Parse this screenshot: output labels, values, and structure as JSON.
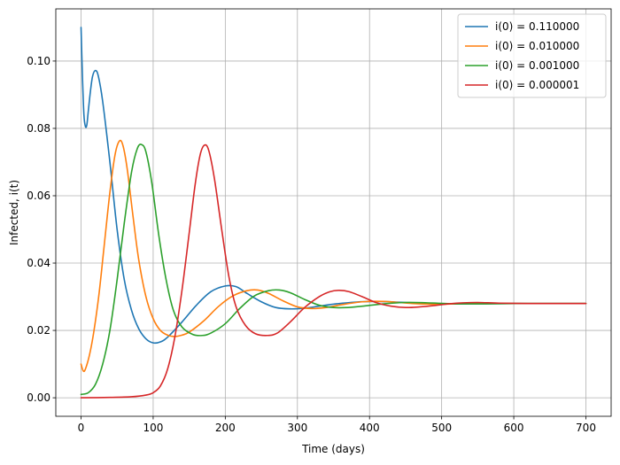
{
  "chart_data": {
    "type": "line",
    "title": "",
    "xlabel": "Time (days)",
    "ylabel": "Infected, i(t)",
    "xlim": [
      -35,
      735
    ],
    "ylim": [
      -0.0055,
      0.1155
    ],
    "xticks": [
      0,
      100,
      200,
      300,
      400,
      500,
      600,
      700
    ],
    "xtick_labels": [
      "0",
      "100",
      "200",
      "300",
      "400",
      "500",
      "600",
      "700"
    ],
    "yticks": [
      0.0,
      0.02,
      0.04,
      0.06,
      0.08,
      0.1
    ],
    "ytick_labels": [
      "0.00",
      "0.02",
      "0.04",
      "0.06",
      "0.08",
      "0.10"
    ],
    "grid": true,
    "legend_position": "top-right",
    "series": [
      {
        "name": "i(0) = 0.110000",
        "color": "#1f77b4",
        "points": [
          [
            0,
            0.11
          ],
          [
            2,
            0.095
          ],
          [
            4,
            0.084
          ],
          [
            6,
            0.0806
          ],
          [
            8,
            0.081
          ],
          [
            10,
            0.085
          ],
          [
            13,
            0.091
          ],
          [
            16,
            0.0955
          ],
          [
            20,
            0.0972
          ],
          [
            24,
            0.0955
          ],
          [
            30,
            0.088
          ],
          [
            40,
            0.07
          ],
          [
            50,
            0.05
          ],
          [
            60,
            0.035
          ],
          [
            70,
            0.026
          ],
          [
            80,
            0.0205
          ],
          [
            90,
            0.0175
          ],
          [
            100,
            0.0163
          ],
          [
            110,
            0.0166
          ],
          [
            120,
            0.018
          ],
          [
            140,
            0.0225
          ],
          [
            160,
            0.0275
          ],
          [
            180,
            0.0315
          ],
          [
            200,
            0.0332
          ],
          [
            215,
            0.033
          ],
          [
            230,
            0.031
          ],
          [
            250,
            0.0285
          ],
          [
            270,
            0.0268
          ],
          [
            290,
            0.0264
          ],
          [
            310,
            0.0266
          ],
          [
            330,
            0.0272
          ],
          [
            350,
            0.0278
          ],
          [
            380,
            0.0284
          ],
          [
            410,
            0.0286
          ],
          [
            450,
            0.0283
          ],
          [
            500,
            0.0279
          ],
          [
            550,
            0.0279
          ],
          [
            600,
            0.028
          ],
          [
            650,
            0.028
          ],
          [
            700,
            0.028
          ]
        ]
      },
      {
        "name": "i(0) = 0.010000",
        "color": "#ff7f0e",
        "points": [
          [
            0,
            0.01
          ],
          [
            3,
            0.008
          ],
          [
            6,
            0.0085
          ],
          [
            12,
            0.013
          ],
          [
            18,
            0.02
          ],
          [
            25,
            0.031
          ],
          [
            32,
            0.045
          ],
          [
            40,
            0.061
          ],
          [
            47,
            0.072
          ],
          [
            53,
            0.0762
          ],
          [
            58,
            0.075
          ],
          [
            64,
            0.068
          ],
          [
            72,
            0.054
          ],
          [
            80,
            0.041
          ],
          [
            90,
            0.03
          ],
          [
            100,
            0.0235
          ],
          [
            110,
            0.02
          ],
          [
            120,
            0.0186
          ],
          [
            130,
            0.0182
          ],
          [
            140,
            0.0186
          ],
          [
            150,
            0.0195
          ],
          [
            170,
            0.0228
          ],
          [
            190,
            0.027
          ],
          [
            210,
            0.0302
          ],
          [
            230,
            0.0318
          ],
          [
            245,
            0.032
          ],
          [
            260,
            0.031
          ],
          [
            280,
            0.0288
          ],
          [
            300,
            0.027
          ],
          [
            320,
            0.0265
          ],
          [
            340,
            0.0268
          ],
          [
            360,
            0.0276
          ],
          [
            390,
            0.0285
          ],
          [
            420,
            0.0286
          ],
          [
            460,
            0.028
          ],
          [
            500,
            0.0278
          ],
          [
            550,
            0.0281
          ],
          [
            600,
            0.028
          ],
          [
            650,
            0.028
          ],
          [
            700,
            0.028
          ]
        ]
      },
      {
        "name": "i(0) = 0.001000",
        "color": "#2ca02c",
        "points": [
          [
            0,
            0.001
          ],
          [
            10,
            0.0015
          ],
          [
            20,
            0.004
          ],
          [
            30,
            0.01
          ],
          [
            40,
            0.02
          ],
          [
            50,
            0.035
          ],
          [
            60,
            0.052
          ],
          [
            70,
            0.067
          ],
          [
            78,
            0.074
          ],
          [
            84,
            0.0752
          ],
          [
            90,
            0.073
          ],
          [
            98,
            0.064
          ],
          [
            108,
            0.048
          ],
          [
            118,
            0.035
          ],
          [
            128,
            0.026
          ],
          [
            140,
            0.021
          ],
          [
            155,
            0.0188
          ],
          [
            168,
            0.0185
          ],
          [
            180,
            0.0192
          ],
          [
            200,
            0.022
          ],
          [
            220,
            0.0265
          ],
          [
            240,
            0.0302
          ],
          [
            260,
            0.0318
          ],
          [
            275,
            0.032
          ],
          [
            290,
            0.0312
          ],
          [
            310,
            0.0292
          ],
          [
            330,
            0.0275
          ],
          [
            350,
            0.0268
          ],
          [
            370,
            0.0268
          ],
          [
            390,
            0.0272
          ],
          [
            420,
            0.0279
          ],
          [
            450,
            0.0283
          ],
          [
            480,
            0.0282
          ],
          [
            520,
            0.0279
          ],
          [
            560,
            0.0279
          ],
          [
            600,
            0.028
          ],
          [
            650,
            0.028
          ],
          [
            700,
            0.028
          ]
        ]
      },
      {
        "name": "i(0) = 0.000001",
        "color": "#d62728",
        "points": [
          [
            0,
            0.0
          ],
          [
            40,
            0.0001
          ],
          [
            70,
            0.0003
          ],
          [
            90,
            0.0008
          ],
          [
            100,
            0.0015
          ],
          [
            110,
            0.0035
          ],
          [
            120,
            0.0085
          ],
          [
            130,
            0.018
          ],
          [
            140,
            0.032
          ],
          [
            150,
            0.049
          ],
          [
            158,
            0.063
          ],
          [
            165,
            0.072
          ],
          [
            171,
            0.075
          ],
          [
            177,
            0.0735
          ],
          [
            185,
            0.065
          ],
          [
            195,
            0.05
          ],
          [
            205,
            0.036
          ],
          [
            215,
            0.027
          ],
          [
            228,
            0.0215
          ],
          [
            242,
            0.019
          ],
          [
            258,
            0.0185
          ],
          [
            272,
            0.0192
          ],
          [
            290,
            0.0225
          ],
          [
            310,
            0.0268
          ],
          [
            330,
            0.03
          ],
          [
            345,
            0.0315
          ],
          [
            358,
            0.0319
          ],
          [
            372,
            0.0315
          ],
          [
            390,
            0.03
          ],
          [
            410,
            0.0282
          ],
          [
            430,
            0.0272
          ],
          [
            450,
            0.0268
          ],
          [
            470,
            0.027
          ],
          [
            490,
            0.0274
          ],
          [
            510,
            0.0279
          ],
          [
            530,
            0.0282
          ],
          [
            550,
            0.0283
          ],
          [
            580,
            0.0281
          ],
          [
            620,
            0.028
          ],
          [
            660,
            0.028
          ],
          [
            700,
            0.028
          ]
        ]
      }
    ]
  }
}
